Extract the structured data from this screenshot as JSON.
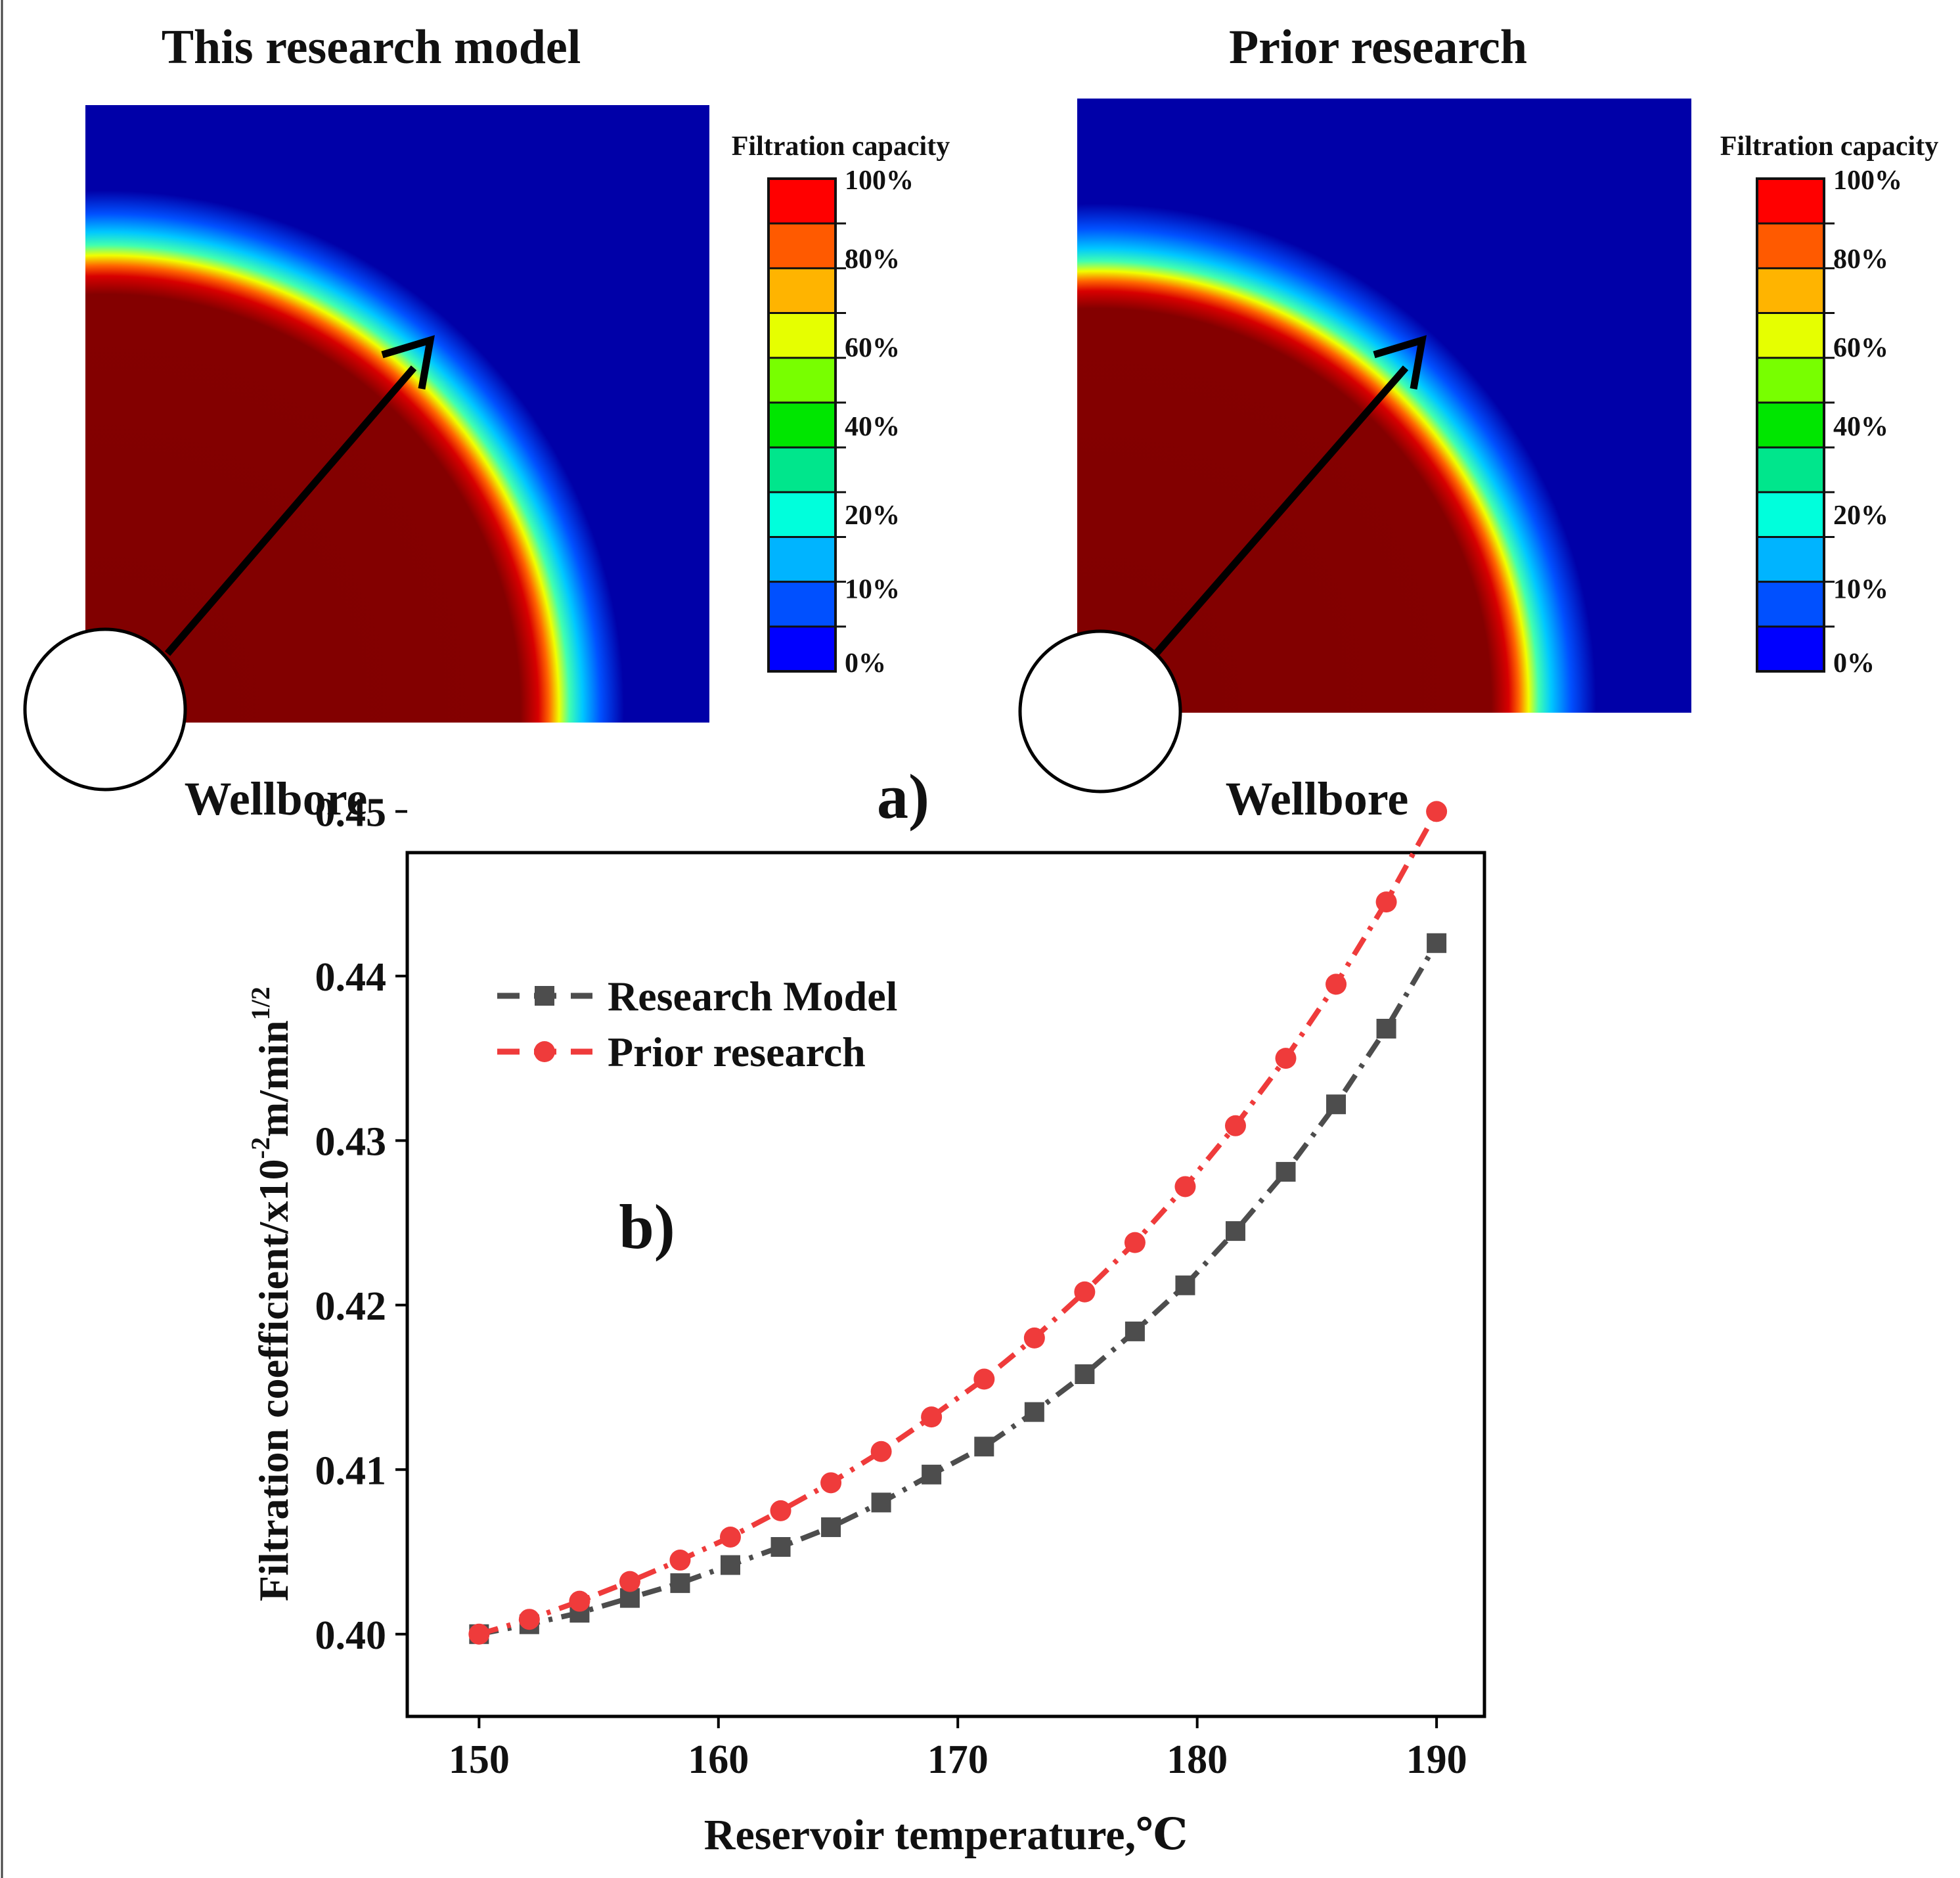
{
  "panel_a": {
    "label": "a)",
    "left": {
      "title": "This research model",
      "wellbore_label": "Wellbore"
    },
    "right": {
      "title": "Prior research",
      "wellbore_label": "Wellbore"
    },
    "colorbar": {
      "title": "Filtration capacity",
      "tick_labels": [
        "100%",
        "80%",
        "60%",
        "40%",
        "20%",
        "10%",
        "0%"
      ],
      "bands": [
        "#ff0000",
        "#ff5a00",
        "#ffb400",
        "#e6ff00",
        "#78ff00",
        "#00e600",
        "#00e68c",
        "#00ffdc",
        "#00b4ff",
        "#0050ff",
        "#0000ff"
      ]
    }
  },
  "panel_b": {
    "label": "b)"
  },
  "chart_data": {
    "type": "line",
    "xlabel": "Reservoir temperature,℃",
    "ylabel": "Filtration coefficient/x10",
    "ylabel_exp": "-2",
    "ylabel_unit": "m/min",
    "ylabel_unit_exp": "1/2",
    "xlim": [
      147,
      192
    ],
    "ylim": [
      0.395,
      0.4475
    ],
    "x_ticks": [
      150,
      160,
      170,
      180,
      190
    ],
    "x_tick_labels": [
      "150",
      "160",
      "170",
      "180",
      "190"
    ],
    "y_ticks": [
      0.4,
      0.41,
      0.42,
      0.43,
      0.44,
      0.45
    ],
    "y_tick_labels": [
      "0.40",
      "0.41",
      "0.42",
      "0.43",
      "0.44",
      "0.45"
    ],
    "legend_position": "top-left",
    "x": [
      150,
      152.1,
      154.2,
      156.3,
      158.4,
      160.5,
      162.6,
      164.7,
      166.8,
      168.9,
      171.1,
      173.2,
      175.3,
      177.4,
      179.5,
      181.6,
      183.7,
      185.8,
      187.9,
      190
    ],
    "series": [
      {
        "name": "Research Model",
        "color": "#4d4d4d",
        "marker": "square",
        "values": [
          0.4,
          0.4006,
          0.4013,
          0.4022,
          0.4031,
          0.4042,
          0.4053,
          0.4065,
          0.408,
          0.4097,
          0.4114,
          0.4135,
          0.4158,
          0.4184,
          0.4212,
          0.4245,
          0.4281,
          0.4322,
          0.4368,
          0.442
        ]
      },
      {
        "name": "Prior research",
        "color": "#ef3b3b",
        "marker": "circle",
        "values": [
          0.4,
          0.4009,
          0.402,
          0.4032,
          0.4045,
          0.4059,
          0.4075,
          0.4092,
          0.4111,
          0.4132,
          0.4155,
          0.418,
          0.4208,
          0.4238,
          0.4272,
          0.4309,
          0.435,
          0.4395,
          0.4445,
          0.45
        ]
      }
    ]
  }
}
